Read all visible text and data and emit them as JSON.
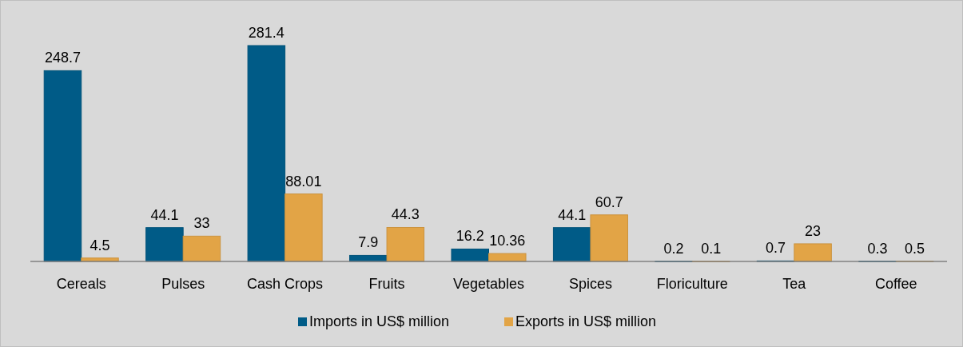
{
  "chart_data": {
    "type": "bar",
    "categories": [
      "Cereals",
      "Pulses",
      "Cash Crops",
      "Fruits",
      "Vegetables",
      "Spices",
      "Floriculture",
      "Tea",
      "Coffee"
    ],
    "series": [
      {
        "name": "Imports in US$ million",
        "color": "#005b87",
        "values": [
          248.7,
          44.1,
          281.4,
          7.9,
          16.2,
          44.1,
          0.2,
          0.7,
          0.3
        ]
      },
      {
        "name": "Exports in US$ million",
        "color": "#e2a446",
        "values": [
          4.5,
          33,
          88.01,
          44.3,
          10.36,
          60.7,
          0.1,
          23,
          0.5
        ]
      }
    ],
    "data_labels": true,
    "legend": "bottom"
  }
}
